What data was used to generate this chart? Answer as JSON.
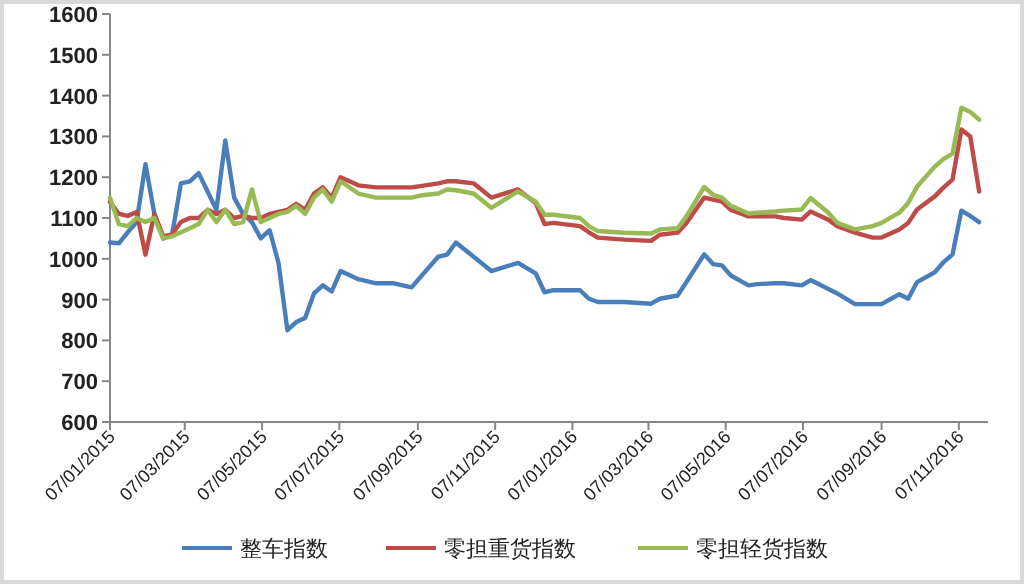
{
  "chart_data": {
    "type": "line",
    "x": [
      "2015-01-07",
      "2015-01-14",
      "2015-01-21",
      "2015-01-28",
      "2015-02-04",
      "2015-02-11",
      "2015-02-18",
      "2015-02-25",
      "2015-03-04",
      "2015-03-11",
      "2015-03-18",
      "2015-03-25",
      "2015-04-01",
      "2015-04-08",
      "2015-04-15",
      "2015-04-22",
      "2015-04-29",
      "2015-05-06",
      "2015-05-13",
      "2015-05-20",
      "2015-05-27",
      "2015-06-03",
      "2015-06-10",
      "2015-06-17",
      "2015-06-24",
      "2015-07-01",
      "2015-07-08",
      "2015-07-22",
      "2015-08-05",
      "2015-08-19",
      "2015-09-02",
      "2015-09-09",
      "2015-09-23",
      "2015-09-30",
      "2015-10-07",
      "2015-10-21",
      "2015-11-04",
      "2015-11-25",
      "2015-12-09",
      "2015-12-16",
      "2015-12-23",
      "2016-01-13",
      "2016-01-20",
      "2016-01-27",
      "2016-02-17",
      "2016-03-09",
      "2016-03-16",
      "2016-03-30",
      "2016-04-06",
      "2016-04-20",
      "2016-04-27",
      "2016-05-04",
      "2016-05-11",
      "2016-05-25",
      "2016-06-01",
      "2016-06-15",
      "2016-06-22",
      "2016-07-06",
      "2016-07-13",
      "2016-07-27",
      "2016-08-03",
      "2016-08-17",
      "2016-08-31",
      "2016-09-07",
      "2016-09-21",
      "2016-09-28",
      "2016-10-05",
      "2016-10-19",
      "2016-10-26",
      "2016-11-02",
      "2016-11-09",
      "2016-11-16",
      "2016-11-23"
    ],
    "series": [
      {
        "name": "整车指数",
        "color": "#4a7ebb",
        "values": [
          1040,
          1038,
          1065,
          1090,
          1232,
          1110,
          1050,
          1060,
          1185,
          1190,
          1210,
          1165,
          1120,
          1290,
          1150,
          1110,
          1090,
          1050,
          1070,
          990,
          825,
          845,
          855,
          915,
          935,
          920,
          970,
          950,
          940,
          940,
          930,
          955,
          1005,
          1010,
          1040,
          1005,
          970,
          990,
          964,
          918,
          923,
          923,
          902,
          894,
          894,
          890,
          902,
          910,
          943,
          1011,
          987,
          984,
          959,
          935,
          938,
          940,
          940,
          935,
          948,
          926,
          915,
          889,
          889,
          889,
          913,
          902,
          943,
          967,
          992,
          1011,
          1118,
          1105,
          1090
        ]
      },
      {
        "name": "零担重货指数",
        "color": "#be4b48",
        "values": [
          1140,
          1110,
          1105,
          1115,
          1010,
          1110,
          1055,
          1060,
          1090,
          1100,
          1100,
          1120,
          1110,
          1120,
          1100,
          1105,
          1100,
          1100,
          1110,
          1115,
          1120,
          1135,
          1120,
          1160,
          1175,
          1150,
          1200,
          1180,
          1175,
          1175,
          1175,
          1178,
          1185,
          1190,
          1190,
          1185,
          1150,
          1170,
          1137,
          1085,
          1088,
          1080,
          1065,
          1052,
          1047,
          1044,
          1059,
          1064,
          1088,
          1150,
          1145,
          1140,
          1120,
          1104,
          1104,
          1104,
          1100,
          1096,
          1116,
          1096,
          1080,
          1064,
          1052,
          1052,
          1072,
          1088,
          1121,
          1153,
          1175,
          1194,
          1317,
          1300,
          1165
        ]
      },
      {
        "name": "零担轻货指数",
        "color": "#98b954",
        "values": [
          1150,
          1085,
          1080,
          1100,
          1090,
          1100,
          1050,
          1055,
          1065,
          1075,
          1085,
          1120,
          1090,
          1120,
          1085,
          1090,
          1170,
          1090,
          1100,
          1110,
          1115,
          1130,
          1110,
          1150,
          1170,
          1140,
          1190,
          1160,
          1150,
          1150,
          1150,
          1155,
          1160,
          1170,
          1168,
          1160,
          1125,
          1165,
          1140,
          1108,
          1108,
          1100,
          1080,
          1068,
          1064,
          1062,
          1072,
          1075,
          1104,
          1176,
          1157,
          1150,
          1130,
          1111,
          1113,
          1116,
          1118,
          1121,
          1149,
          1113,
          1088,
          1072,
          1080,
          1088,
          1113,
          1137,
          1177,
          1226,
          1245,
          1258,
          1370,
          1360,
          1341
        ]
      }
    ],
    "xlim": [
      "2015-01-07",
      "2016-11-30"
    ],
    "xticks": [
      {
        "value": "2015-01-07",
        "label": "07/01/2015"
      },
      {
        "value": "2015-03-07",
        "label": "07/03/2015"
      },
      {
        "value": "2015-05-07",
        "label": "07/05/2015"
      },
      {
        "value": "2015-07-07",
        "label": "07/07/2015"
      },
      {
        "value": "2015-09-07",
        "label": "07/09/2015"
      },
      {
        "value": "2015-11-07",
        "label": "07/11/2015"
      },
      {
        "value": "2016-01-07",
        "label": "07/01/2016"
      },
      {
        "value": "2016-03-07",
        "label": "07/03/2016"
      },
      {
        "value": "2016-05-07",
        "label": "07/05/2016"
      },
      {
        "value": "2016-07-07",
        "label": "07/07/2016"
      },
      {
        "value": "2016-09-07",
        "label": "07/09/2016"
      },
      {
        "value": "2016-11-07",
        "label": "07/11/2016"
      }
    ],
    "ylim": [
      600,
      1600
    ],
    "yticks": [
      600,
      700,
      800,
      900,
      1000,
      1100,
      1200,
      1300,
      1400,
      1500,
      1600
    ],
    "grid": false,
    "legend": "bottom"
  }
}
